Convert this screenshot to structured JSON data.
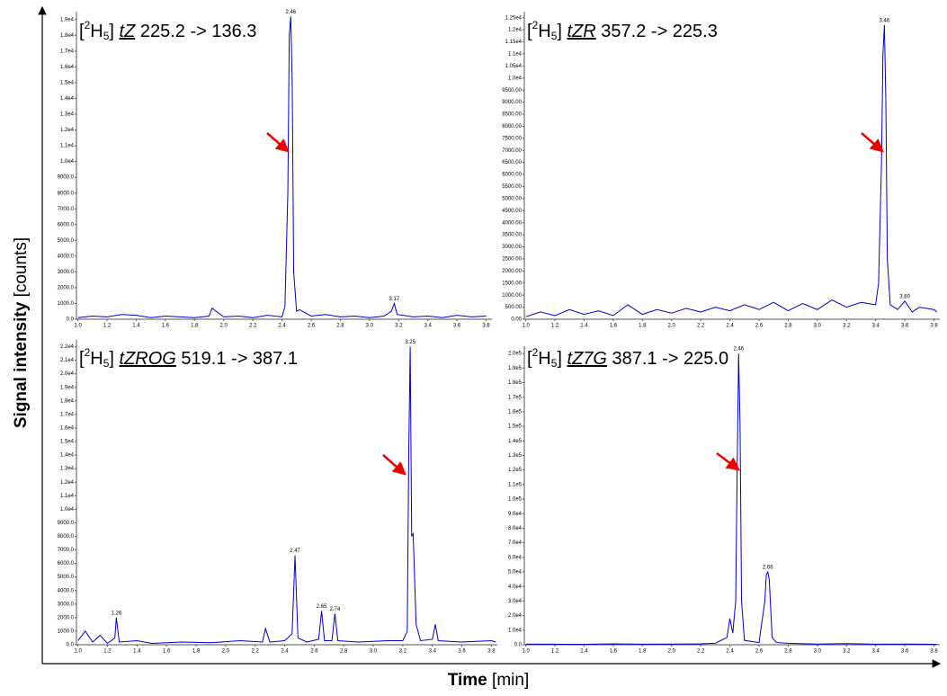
{
  "axis_labels": {
    "y": {
      "text": "Signal intensity",
      "unit": "[counts]"
    },
    "x": {
      "text": "Time",
      "unit": "[min]"
    }
  },
  "chart_data": [
    {
      "type": "line",
      "title": {
        "open": "[",
        "mass": "2",
        "element": "H",
        "count": "5",
        "close": "]",
        "compound": "tZ",
        "transition": "225.2 -> 136.3"
      },
      "x": [
        1.0,
        1.1,
        1.2,
        1.3,
        1.4,
        1.5,
        1.6,
        1.7,
        1.8,
        1.9,
        1.92,
        2.0,
        2.1,
        2.2,
        2.3,
        2.4,
        2.42,
        2.44,
        2.45,
        2.46,
        2.47,
        2.48,
        2.5,
        2.52,
        2.6,
        2.7,
        2.8,
        2.9,
        3.0,
        3.1,
        3.15,
        3.17,
        3.19,
        3.3,
        3.4,
        3.5,
        3.6,
        3.7,
        3.8
      ],
      "series": [
        {
          "color": "#0000cc",
          "values": [
            100,
            200,
            150,
            300,
            250,
            100,
            200,
            150,
            100,
            200,
            700,
            150,
            200,
            100,
            250,
            150,
            800,
            8000,
            18000,
            19200,
            15000,
            3000,
            500,
            600,
            200,
            300,
            150,
            200,
            100,
            200,
            500,
            1000,
            300,
            150,
            200,
            100,
            250,
            150,
            200
          ]
        }
      ],
      "xlim": [
        0.99,
        3.84
      ],
      "ylim": [
        0,
        19500
      ],
      "xticks": [
        {
          "value": 1,
          "label": "1.0"
        },
        1.2,
        1.4,
        1.6,
        1.8,
        {
          "value": 2,
          "label": "2.0"
        },
        2.2,
        2.4,
        2.6,
        2.8,
        {
          "value": 3,
          "label": "3.0"
        },
        3.2,
        3.4,
        3.6,
        3.8
      ],
      "yticks": [
        {
          "value": 0,
          "label": "0.0"
        },
        {
          "value": 1000,
          "label": "1000.0"
        },
        {
          "value": 2000,
          "label": "2000.0"
        },
        {
          "value": 3000,
          "label": "3000.0"
        },
        {
          "value": 4000,
          "label": "4000.0"
        },
        {
          "value": 5000,
          "label": "5000.0"
        },
        {
          "value": 6000,
          "label": "6000.0"
        },
        {
          "value": 7000,
          "label": "7000.0"
        },
        {
          "value": 8000,
          "label": "8000.0"
        },
        {
          "value": 9000,
          "label": "9000.0"
        },
        {
          "value": 10000,
          "label": "1.0e4"
        },
        {
          "value": 11000,
          "label": "1.1e4"
        },
        {
          "value": 12000,
          "label": "1.2e4"
        },
        {
          "value": 13000,
          "label": "1.3e4"
        },
        {
          "value": 14000,
          "label": "1.4e4"
        },
        {
          "value": 15000,
          "label": "1.5e4"
        },
        {
          "value": 16000,
          "label": "1.6e4"
        },
        {
          "value": 17000,
          "label": "1.7e4"
        },
        {
          "value": 18000,
          "label": "1.8e4"
        },
        {
          "value": 19000,
          "label": "1.9e4"
        }
      ],
      "peak_labels": [
        2.46,
        3.17
      ]
    },
    {
      "type": "line",
      "title": {
        "open": "[",
        "mass": "2",
        "element": "H",
        "count": "5",
        "close": "]",
        "compound": "tZR",
        "transition": "357.2 -> 225.3"
      },
      "x": [
        1.0,
        1.1,
        1.2,
        1.3,
        1.4,
        1.5,
        1.6,
        1.7,
        1.8,
        1.9,
        2.0,
        2.1,
        2.2,
        2.3,
        2.4,
        2.5,
        2.6,
        2.7,
        2.8,
        2.9,
        3.0,
        3.1,
        3.2,
        3.3,
        3.4,
        3.42,
        3.44,
        3.45,
        3.46,
        3.47,
        3.48,
        3.5,
        3.55,
        3.6,
        3.65,
        3.7,
        3.8,
        3.82
      ],
      "series": [
        {
          "color": "#0000cc",
          "values": [
            100,
            300,
            150,
            400,
            200,
            350,
            150,
            600,
            200,
            400,
            250,
            450,
            300,
            500,
            350,
            600,
            400,
            700,
            350,
            650,
            400,
            800,
            500,
            700,
            600,
            1500,
            6500,
            11000,
            12200,
            9000,
            2500,
            600,
            400,
            750,
            300,
            500,
            400,
            300
          ]
        }
      ],
      "xlim": [
        0.99,
        3.84
      ],
      "ylim": [
        0,
        12750
      ],
      "xticks": [
        {
          "value": 1,
          "label": "1.0"
        },
        1.2,
        1.4,
        1.6,
        1.8,
        {
          "value": 2,
          "label": "2.0"
        },
        2.2,
        2.4,
        2.6,
        2.8,
        {
          "value": 3,
          "label": "3.0"
        },
        3.2,
        3.4,
        3.6,
        3.8
      ],
      "yticks": [
        {
          "value": 0,
          "label": "0.00"
        },
        {
          "value": 500,
          "label": "500.00"
        },
        {
          "value": 1000,
          "label": "1000.00"
        },
        {
          "value": 1500,
          "label": "1500.00"
        },
        {
          "value": 2000,
          "label": "2000.00"
        },
        {
          "value": 2500,
          "label": "2500.00"
        },
        {
          "value": 3000,
          "label": "3000.00"
        },
        {
          "value": 3500,
          "label": "3500.00"
        },
        {
          "value": 4000,
          "label": "4000.00"
        },
        {
          "value": 4500,
          "label": "4500.00"
        },
        {
          "value": 5000,
          "label": "5000.00"
        },
        {
          "value": 5500,
          "label": "5500.00"
        },
        {
          "value": 6000,
          "label": "6000.00"
        },
        {
          "value": 6500,
          "label": "6500.00"
        },
        {
          "value": 7000,
          "label": "7000.00"
        },
        {
          "value": 7500,
          "label": "7500.00"
        },
        {
          "value": 8000,
          "label": "8000.00"
        },
        {
          "value": 8500,
          "label": "8500.00"
        },
        {
          "value": 9000,
          "label": "9000.00"
        },
        {
          "value": 9500,
          "label": "9500.00"
        },
        {
          "value": 10000,
          "label": "1.0e4"
        },
        {
          "value": 10500,
          "label": "1.05e4"
        },
        {
          "value": 11000,
          "label": "1.1e4"
        },
        {
          "value": 11500,
          "label": "1.15e4"
        },
        {
          "value": 12000,
          "label": "1.2e4"
        },
        {
          "value": 12500,
          "label": "1.25e4"
        }
      ],
      "peak_labels": [
        3.46,
        {
          "value": 3.6,
          "label": "3.60"
        }
      ]
    },
    {
      "type": "line",
      "title": {
        "open": "[",
        "mass": "2",
        "element": "H",
        "count": "5",
        "close": "]",
        "compound": "tZROG",
        "transition": "519.1 -> 387.1"
      },
      "x": [
        1.0,
        1.05,
        1.1,
        1.15,
        1.2,
        1.25,
        1.26,
        1.28,
        1.4,
        1.5,
        1.7,
        1.9,
        2.1,
        2.25,
        2.27,
        2.3,
        2.4,
        2.45,
        2.47,
        2.49,
        2.55,
        2.63,
        2.65,
        2.67,
        2.72,
        2.74,
        2.76,
        2.9,
        3.1,
        3.2,
        3.23,
        3.24,
        3.25,
        3.26,
        3.27,
        3.29,
        3.32,
        3.4,
        3.42,
        3.44,
        3.6,
        3.8,
        3.83
      ],
      "series": [
        {
          "color": "#0000cc",
          "values": [
            300,
            1000,
            200,
            700,
            100,
            500,
            2000,
            200,
            300,
            100,
            200,
            150,
            300,
            200,
            1200,
            200,
            300,
            800,
            6600,
            500,
            200,
            400,
            2500,
            300,
            300,
            2300,
            300,
            200,
            300,
            300,
            1000,
            14000,
            22000,
            8000,
            8200,
            1500,
            300,
            400,
            1500,
            300,
            200,
            300,
            200
          ]
        }
      ],
      "xlim": [
        0.99,
        3.84
      ],
      "ylim": [
        0,
        22500
      ],
      "xticks": [
        {
          "value": 1,
          "label": "1.0"
        },
        1.2,
        1.4,
        1.6,
        1.8,
        {
          "value": 2,
          "label": "2.0"
        },
        2.2,
        2.4,
        2.6,
        2.8,
        {
          "value": 3,
          "label": "3.0"
        },
        3.2,
        3.4,
        3.6,
        3.8
      ],
      "yticks": [
        {
          "value": 0,
          "label": "0.0"
        },
        {
          "value": 1000,
          "label": "1000.0"
        },
        {
          "value": 2000,
          "label": "2000.0"
        },
        {
          "value": 3000,
          "label": "3000.0"
        },
        {
          "value": 4000,
          "label": "4000.0"
        },
        {
          "value": 5000,
          "label": "5000.0"
        },
        {
          "value": 6000,
          "label": "6000.0"
        },
        {
          "value": 7000,
          "label": "7000.0"
        },
        {
          "value": 8000,
          "label": "8000.0"
        },
        {
          "value": 9000,
          "label": "9000.0"
        },
        {
          "value": 10000,
          "label": "1.0e4"
        },
        {
          "value": 11000,
          "label": "1.1e4"
        },
        {
          "value": 12000,
          "label": "1.2e4"
        },
        {
          "value": 13000,
          "label": "1.3e4"
        },
        {
          "value": 14000,
          "label": "1.4e4"
        },
        {
          "value": 15000,
          "label": "1.5e4"
        },
        {
          "value": 16000,
          "label": "1.6e4"
        },
        {
          "value": 17000,
          "label": "1.7e4"
        },
        {
          "value": 18000,
          "label": "1.8e4"
        },
        {
          "value": 19000,
          "label": "1.9e4"
        },
        {
          "value": 20000,
          "label": "2.0e4"
        },
        {
          "value": 21000,
          "label": "2.1e4"
        },
        {
          "value": 22000,
          "label": "2.2e4"
        }
      ],
      "peak_labels": [
        1.26,
        2.47,
        2.65,
        2.74,
        3.25
      ]
    },
    {
      "type": "line",
      "title": {
        "open": "[",
        "mass": "2",
        "element": "H",
        "count": "5",
        "close": "]",
        "compound": "tZ7G",
        "transition": "387.1 -> 225.0"
      },
      "x": [
        1.0,
        1.2,
        1.4,
        1.6,
        1.8,
        2.0,
        2.2,
        2.3,
        2.38,
        2.4,
        2.42,
        2.44,
        2.45,
        2.46,
        2.47,
        2.48,
        2.5,
        2.6,
        2.64,
        2.65,
        2.66,
        2.67,
        2.69,
        2.72,
        2.8,
        3.0,
        3.2,
        3.4,
        3.6,
        3.8,
        3.82
      ],
      "series": [
        {
          "color": "#0000cc",
          "values": [
            500,
            400,
            300,
            600,
            400,
            500,
            600,
            1000,
            5000,
            18000,
            8000,
            30000,
            120000,
            200000,
            150000,
            30000,
            3000,
            1500,
            30000,
            48000,
            50000,
            45000,
            5000,
            1500,
            1000,
            500,
            800,
            400,
            500,
            300,
            200
          ]
        }
      ],
      "xlim": [
        0.99,
        3.84
      ],
      "ylim": [
        0,
        205000
      ],
      "xticks": [
        {
          "value": 1,
          "label": "1.0"
        },
        1.2,
        1.4,
        1.6,
        1.8,
        {
          "value": 2,
          "label": "2.0"
        },
        2.2,
        2.4,
        2.6,
        2.8,
        {
          "value": 3,
          "label": "3.0"
        },
        3.2,
        3.4,
        3.6,
        3.8
      ],
      "yticks": [
        {
          "value": 0,
          "label": "0.0"
        },
        {
          "value": 10000,
          "label": "1.0e4"
        },
        {
          "value": 20000,
          "label": "2.0e4"
        },
        {
          "value": 30000,
          "label": "3.0e4"
        },
        {
          "value": 40000,
          "label": "4.0e4"
        },
        {
          "value": 50000,
          "label": "5.0e4"
        },
        {
          "value": 60000,
          "label": "6.0e4"
        },
        {
          "value": 70000,
          "label": "7.0e4"
        },
        {
          "value": 80000,
          "label": "8.0e4"
        },
        {
          "value": 90000,
          "label": "9.0e4"
        },
        {
          "value": 100000,
          "label": "1.0e5"
        },
        {
          "value": 110000,
          "label": "1.1e5"
        },
        {
          "value": 120000,
          "label": "1.2e5"
        },
        {
          "value": 130000,
          "label": "1.3e5"
        },
        {
          "value": 140000,
          "label": "1.4e5"
        },
        {
          "value": 150000,
          "label": "1.5e5"
        },
        {
          "value": 160000,
          "label": "1.6e5"
        },
        {
          "value": 170000,
          "label": "1.7e5"
        },
        {
          "value": 180000,
          "label": "1.8e5"
        },
        {
          "value": 190000,
          "label": "1.9e5"
        },
        {
          "value": 200000,
          "label": "2.0e5"
        }
      ],
      "peak_labels": [
        2.46,
        2.66
      ]
    }
  ]
}
